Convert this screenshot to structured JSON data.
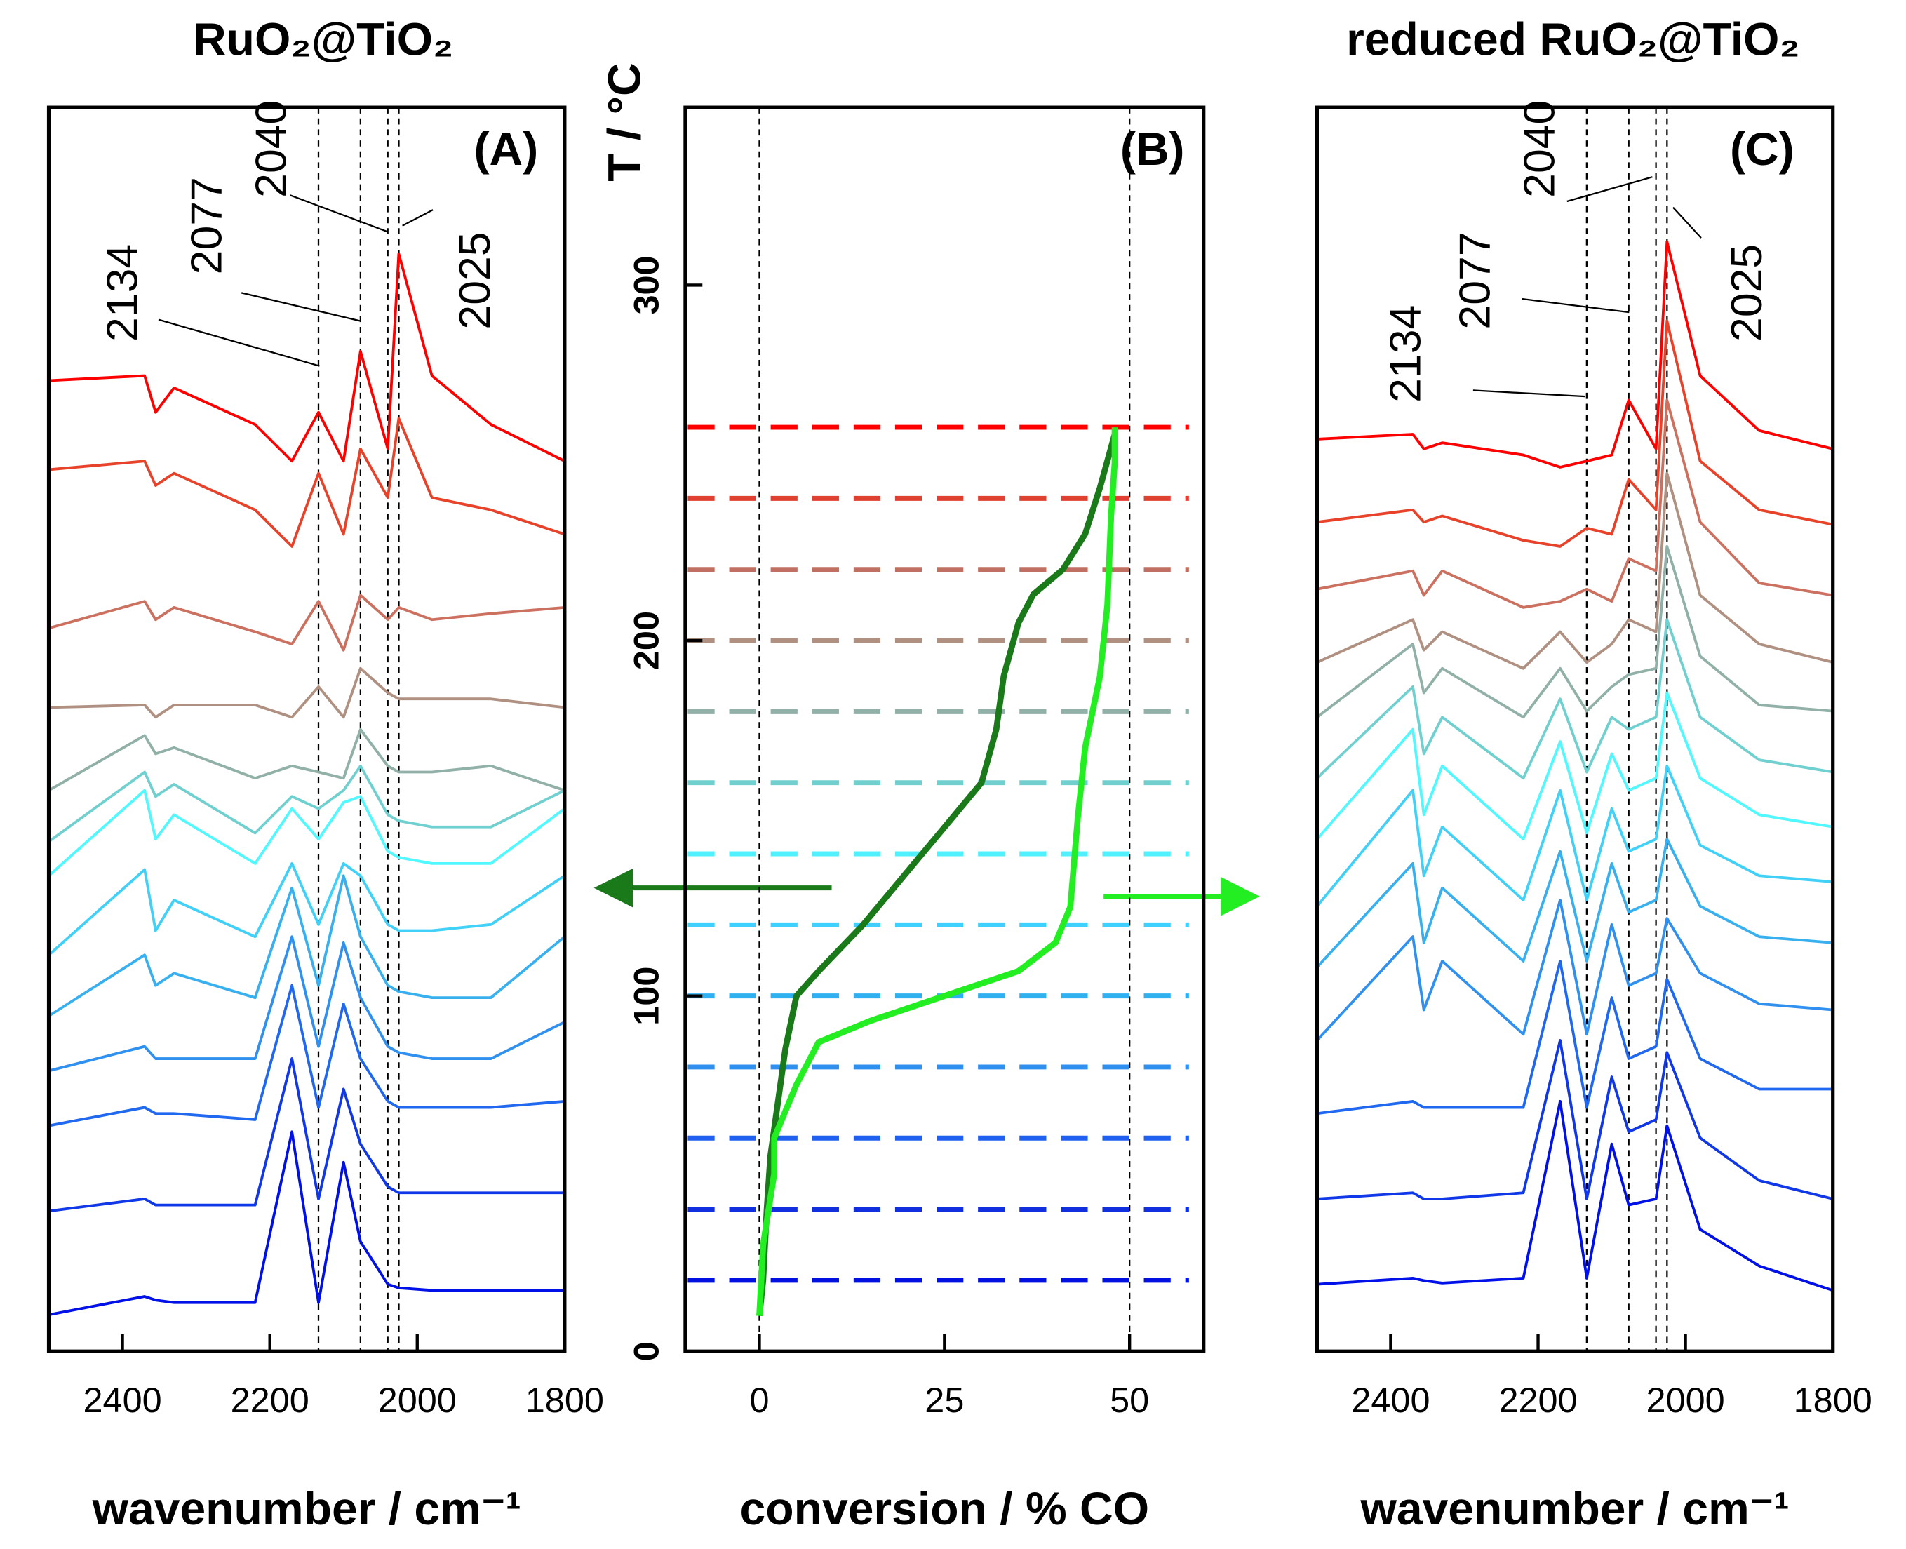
{
  "chart_data": [
    {
      "type": "line",
      "title": "RuO₂@TiO₂",
      "panel_label": "(A)",
      "xlabel": "wavenumber / cm⁻¹",
      "xlim": [
        2500,
        1800
      ],
      "xticks": [
        2400,
        2200,
        2000,
        1800
      ],
      "ylim": [
        0,
        1020
      ],
      "vlines": [
        2134,
        2077,
        2040,
        2025
      ],
      "x": [
        2500,
        2370,
        2355,
        2330,
        2220,
        2170,
        2134,
        2100,
        2077,
        2040,
        2025,
        1980,
        1900,
        1800
      ],
      "series": [
        {
          "color": "#ff0000",
          "values": [
            796,
            800,
            770,
            790,
            760,
            730,
            770,
            730,
            820,
            740,
            900,
            800,
            760,
            730
          ]
        },
        {
          "color": "#e8432a",
          "values": [
            723,
            730,
            710,
            720,
            690,
            660,
            720,
            670,
            740,
            700,
            765,
            700,
            690,
            670
          ]
        },
        {
          "color": "#cc7060",
          "values": [
            593,
            615,
            600,
            610,
            590,
            580,
            615,
            575,
            620,
            600,
            610,
            600,
            605,
            610
          ]
        },
        {
          "color": "#b09080",
          "values": [
            528,
            530,
            520,
            530,
            530,
            520,
            545,
            520,
            560,
            540,
            535,
            535,
            535,
            528
          ]
        },
        {
          "color": "#90b0a8",
          "values": [
            460,
            505,
            490,
            495,
            470,
            480,
            475,
            470,
            510,
            480,
            475,
            475,
            480,
            460
          ]
        },
        {
          "color": "#70d0d0",
          "values": [
            418,
            475,
            455,
            465,
            425,
            455,
            445,
            460,
            480,
            440,
            435,
            430,
            430,
            460
          ]
        },
        {
          "color": "#50f8ff",
          "values": [
            390,
            460,
            420,
            440,
            400,
            445,
            420,
            450,
            455,
            410,
            405,
            400,
            400,
            445
          ]
        },
        {
          "color": "#40d0f8",
          "values": [
            325,
            395,
            345,
            370,
            340,
            400,
            350,
            400,
            390,
            350,
            345,
            345,
            350,
            390
          ]
        },
        {
          "color": "#38b0f0",
          "values": [
            275,
            325,
            300,
            310,
            290,
            380,
            300,
            390,
            340,
            300,
            295,
            290,
            290,
            340
          ]
        },
        {
          "color": "#3090f0",
          "values": [
            230,
            250,
            240,
            240,
            240,
            340,
            250,
            335,
            290,
            250,
            245,
            240,
            240,
            270
          ]
        },
        {
          "color": "#2068f0",
          "values": [
            185,
            200,
            195,
            195,
            190,
            300,
            200,
            285,
            240,
            205,
            200,
            200,
            200,
            205
          ]
        },
        {
          "color": "#1038e8",
          "values": [
            115,
            125,
            120,
            120,
            120,
            240,
            125,
            215,
            170,
            135,
            130,
            130,
            130,
            130
          ]
        },
        {
          "color": "#0010e8",
          "values": [
            30,
            45,
            42,
            40,
            40,
            180,
            40,
            155,
            90,
            55,
            52,
            50,
            50,
            50
          ]
        }
      ]
    },
    {
      "type": "line",
      "panel_label": "(B)",
      "xlabel": "conversion / % CO",
      "ylabel": "T / °C",
      "xlim": [
        -10,
        60
      ],
      "xticks": [
        0,
        25,
        50
      ],
      "ylim": [
        0,
        350
      ],
      "yticks": [
        0,
        100,
        200,
        300
      ],
      "vlines": [
        0,
        50
      ],
      "hlines": [
        260,
        240,
        220,
        200,
        180,
        160,
        140,
        120,
        100,
        80,
        60,
        40,
        20
      ],
      "hline_colors": [
        "#ff0000",
        "#e04030",
        "#c07060",
        "#b09080",
        "#90b0a8",
        "#70d0d0",
        "#50f0ff",
        "#40d0ff",
        "#30b0f0",
        "#3090f0",
        "#2060f0",
        "#1030e0",
        "#0010e0"
      ],
      "series": [
        {
          "color": "#1a7a1a",
          "x": [
            0,
            0.5,
            1,
            1.5,
            2.5,
            3.5,
            5,
            8,
            14,
            20,
            26,
            30,
            32,
            33,
            35,
            37,
            41,
            44,
            46,
            48
          ],
          "values": [
            10,
            20,
            40,
            55,
            70,
            85,
            100,
            107,
            120,
            135,
            150,
            160,
            175,
            190,
            205,
            213,
            220,
            230,
            243,
            258
          ]
        },
        {
          "color": "#22ee22",
          "x": [
            0,
            0.5,
            2,
            2,
            5,
            8,
            15,
            25,
            35,
            40,
            42,
            43,
            44,
            46,
            47,
            47.5,
            48,
            48
          ],
          "values": [
            10,
            30,
            50,
            60,
            75,
            87,
            93,
            100,
            107,
            115,
            125,
            150,
            170,
            190,
            210,
            235,
            250,
            260
          ]
        }
      ]
    },
    {
      "type": "line",
      "title": "reduced RuO₂@TiO₂",
      "panel_label": "(C)",
      "xlabel": "wavenumber / cm⁻¹",
      "xlim": [
        2500,
        1800
      ],
      "xticks": [
        2400,
        2200,
        2000,
        1800
      ],
      "ylim": [
        0,
        1020
      ],
      "vlines": [
        2134,
        2077,
        2040,
        2025
      ],
      "x": [
        2500,
        2370,
        2355,
        2330,
        2220,
        2170,
        2134,
        2100,
        2077,
        2040,
        2025,
        1980,
        1900,
        1800
      ],
      "series": [
        {
          "color": "#ff0000",
          "values": [
            748,
            752,
            740,
            745,
            735,
            725,
            730,
            735,
            780,
            740,
            910,
            800,
            755,
            740
          ]
        },
        {
          "color": "#e8432a",
          "values": [
            680,
            690,
            680,
            685,
            665,
            660,
            675,
            670,
            715,
            690,
            845,
            730,
            690,
            678
          ]
        },
        {
          "color": "#cc7060",
          "values": [
            625,
            640,
            620,
            640,
            610,
            615,
            625,
            615,
            650,
            640,
            780,
            680,
            630,
            620
          ]
        },
        {
          "color": "#b09080",
          "values": [
            565,
            600,
            575,
            590,
            560,
            590,
            565,
            580,
            600,
            590,
            720,
            620,
            580,
            565
          ]
        },
        {
          "color": "#90b0a8",
          "values": [
            520,
            580,
            540,
            560,
            520,
            560,
            525,
            545,
            555,
            560,
            660,
            570,
            530,
            525
          ]
        },
        {
          "color": "#70d0d0",
          "values": [
            470,
            545,
            490,
            520,
            470,
            535,
            475,
            520,
            510,
            520,
            600,
            520,
            485,
            475
          ]
        },
        {
          "color": "#50f8ff",
          "values": [
            420,
            510,
            440,
            480,
            420,
            500,
            425,
            490,
            460,
            470,
            540,
            470,
            440,
            430
          ]
        },
        {
          "color": "#40d0f8",
          "values": [
            365,
            460,
            390,
            430,
            370,
            460,
            370,
            445,
            410,
            420,
            480,
            415,
            390,
            385
          ]
        },
        {
          "color": "#38b0f0",
          "values": [
            315,
            400,
            335,
            380,
            320,
            410,
            320,
            400,
            360,
            370,
            420,
            365,
            340,
            335
          ]
        },
        {
          "color": "#3090f0",
          "values": [
            255,
            340,
            280,
            320,
            260,
            370,
            260,
            350,
            300,
            310,
            355,
            310,
            285,
            280
          ]
        },
        {
          "color": "#2068f0",
          "values": [
            195,
            205,
            200,
            200,
            200,
            320,
            200,
            290,
            240,
            250,
            305,
            240,
            215,
            215
          ]
        },
        {
          "color": "#1038e8",
          "values": [
            125,
            130,
            125,
            125,
            130,
            255,
            125,
            225,
            180,
            190,
            245,
            175,
            140,
            125
          ]
        },
        {
          "color": "#0010e8",
          "values": [
            55,
            60,
            58,
            56,
            60,
            205,
            60,
            170,
            120,
            125,
            185,
            100,
            70,
            50
          ]
        }
      ]
    }
  ]
}
